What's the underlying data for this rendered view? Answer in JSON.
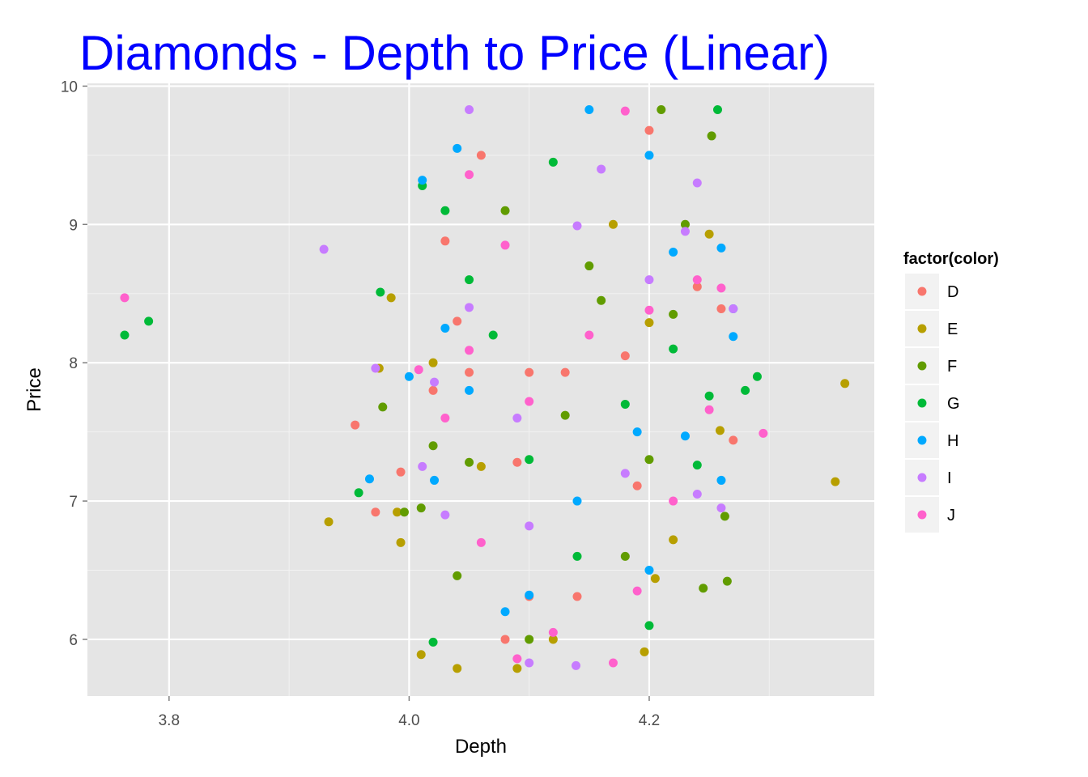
{
  "chart_data": {
    "type": "scatter",
    "title": "Diamonds - Depth to Price (Linear)",
    "title_color": "#0000ff",
    "xlabel": "Depth",
    "ylabel": "Price",
    "xlim": [
      3.732,
      4.3875
    ],
    "ylim": [
      5.59,
      10.02
    ],
    "x_ticks": [
      3.8,
      4.0,
      4.2
    ],
    "x_tick_labels": [
      "3.8",
      "4.0",
      "4.2"
    ],
    "y_ticks": [
      6,
      7,
      8,
      9,
      10
    ],
    "y_tick_labels": [
      "6",
      "7",
      "8",
      "9",
      "10"
    ],
    "grid": true,
    "panel_background": "#e5e5e5",
    "legend": {
      "title": "factor(color)",
      "position": "right",
      "entries": [
        "D",
        "E",
        "F",
        "G",
        "H",
        "I",
        "J"
      ]
    },
    "series": [
      {
        "name": "D",
        "color": "#f8766d",
        "points": [
          [
            3.955,
            7.55
          ],
          [
            3.972,
            6.92
          ],
          [
            3.993,
            7.21
          ],
          [
            4.03,
            8.88
          ],
          [
            4.05,
            7.93
          ],
          [
            4.1,
            7.93
          ],
          [
            4.13,
            7.93
          ],
          [
            4.14,
            6.31
          ],
          [
            4.1,
            6.31
          ],
          [
            4.09,
            7.28
          ],
          [
            4.2,
            9.68
          ],
          [
            4.24,
            8.55
          ],
          [
            4.27,
            7.44
          ],
          [
            4.26,
            8.39
          ],
          [
            4.18,
            8.05
          ],
          [
            4.19,
            7.11
          ],
          [
            4.02,
            7.8
          ],
          [
            4.04,
            8.3
          ],
          [
            4.06,
            9.5
          ],
          [
            4.08,
            6.0
          ]
        ]
      },
      {
        "name": "E",
        "color": "#b79f00",
        "points": [
          [
            3.933,
            6.85
          ],
          [
            3.975,
            7.96
          ],
          [
            3.985,
            8.47
          ],
          [
            3.99,
            6.92
          ],
          [
            3.993,
            6.7
          ],
          [
            4.01,
            5.89
          ],
          [
            4.04,
            5.79
          ],
          [
            4.09,
            5.79
          ],
          [
            4.196,
            5.91
          ],
          [
            4.205,
            6.44
          ],
          [
            4.25,
            8.93
          ],
          [
            4.259,
            7.51
          ],
          [
            4.355,
            7.14
          ],
          [
            4.363,
            7.85
          ],
          [
            4.06,
            7.25
          ],
          [
            4.12,
            6.0
          ],
          [
            4.2,
            8.29
          ],
          [
            4.22,
            6.72
          ],
          [
            4.02,
            8.0
          ],
          [
            4.17,
            9.0
          ]
        ]
      },
      {
        "name": "F",
        "color": "#619c00",
        "points": [
          [
            3.978,
            7.68
          ],
          [
            3.996,
            6.92
          ],
          [
            4.01,
            6.95
          ],
          [
            4.05,
            7.28
          ],
          [
            4.1,
            6.0
          ],
          [
            4.21,
            9.83
          ],
          [
            4.252,
            9.64
          ],
          [
            4.263,
            6.89
          ],
          [
            4.265,
            6.42
          ],
          [
            4.245,
            6.37
          ],
          [
            4.22,
            8.35
          ],
          [
            4.02,
            7.4
          ],
          [
            4.15,
            8.7
          ],
          [
            4.04,
            6.46
          ],
          [
            4.18,
            6.6
          ],
          [
            4.08,
            9.1
          ],
          [
            4.2,
            7.3
          ],
          [
            4.13,
            7.62
          ],
          [
            4.23,
            9.0
          ],
          [
            4.16,
            8.45
          ]
        ]
      },
      {
        "name": "G",
        "color": "#00ba38",
        "points": [
          [
            3.763,
            8.2
          ],
          [
            3.783,
            8.3
          ],
          [
            3.958,
            7.06
          ],
          [
            3.976,
            8.51
          ],
          [
            4.011,
            9.28
          ],
          [
            4.05,
            8.6
          ],
          [
            4.1,
            7.3
          ],
          [
            4.257,
            9.83
          ],
          [
            4.28,
            7.8
          ],
          [
            4.29,
            7.9
          ],
          [
            4.25,
            7.76
          ],
          [
            4.24,
            7.26
          ],
          [
            4.02,
            5.98
          ],
          [
            4.03,
            9.1
          ],
          [
            4.2,
            6.1
          ],
          [
            4.14,
            6.6
          ],
          [
            4.07,
            8.2
          ],
          [
            4.22,
            8.1
          ],
          [
            4.18,
            7.7
          ],
          [
            4.12,
            9.45
          ]
        ]
      },
      {
        "name": "H",
        "color": "#00a9ff",
        "points": [
          [
            3.967,
            7.16
          ],
          [
            4.0,
            7.9
          ],
          [
            4.011,
            9.32
          ],
          [
            4.021,
            7.15
          ],
          [
            4.1,
            6.32
          ],
          [
            4.2,
            9.5
          ],
          [
            4.23,
            7.47
          ],
          [
            4.27,
            8.39
          ],
          [
            4.27,
            8.19
          ],
          [
            4.26,
            8.83
          ],
          [
            4.26,
            7.15
          ],
          [
            4.04,
            9.55
          ],
          [
            4.15,
            9.83
          ],
          [
            4.08,
            6.2
          ],
          [
            4.19,
            7.5
          ],
          [
            4.22,
            8.8
          ],
          [
            4.05,
            7.8
          ],
          [
            4.14,
            7.0
          ],
          [
            4.03,
            8.25
          ],
          [
            4.2,
            6.5
          ]
        ]
      },
      {
        "name": "I",
        "color": "#c77cff",
        "points": [
          [
            3.929,
            8.82
          ],
          [
            3.972,
            7.96
          ],
          [
            4.011,
            7.25
          ],
          [
            4.021,
            7.86
          ],
          [
            4.05,
            9.83
          ],
          [
            4.1,
            5.83
          ],
          [
            4.139,
            5.81
          ],
          [
            4.24,
            9.3
          ],
          [
            4.27,
            8.39
          ],
          [
            4.26,
            6.95
          ],
          [
            4.24,
            7.05
          ],
          [
            4.23,
            8.95
          ],
          [
            4.05,
            8.4
          ],
          [
            4.1,
            6.82
          ],
          [
            4.16,
            9.4
          ],
          [
            4.03,
            6.9
          ],
          [
            4.2,
            8.6
          ],
          [
            4.09,
            7.6
          ],
          [
            4.14,
            8.99
          ],
          [
            4.18,
            7.2
          ]
        ]
      },
      {
        "name": "J",
        "color": "#ff61cc",
        "points": [
          [
            3.763,
            8.47
          ],
          [
            4.008,
            7.95
          ],
          [
            4.05,
            8.09
          ],
          [
            4.09,
            5.86
          ],
          [
            4.17,
            5.83
          ],
          [
            4.26,
            8.54
          ],
          [
            4.295,
            7.49
          ],
          [
            4.25,
            7.66
          ],
          [
            4.24,
            8.6
          ],
          [
            4.18,
            9.82
          ],
          [
            4.05,
            9.36
          ],
          [
            4.12,
            6.05
          ],
          [
            4.03,
            7.6
          ],
          [
            4.2,
            8.38
          ],
          [
            4.1,
            7.72
          ],
          [
            4.06,
            6.7
          ],
          [
            4.15,
            8.2
          ],
          [
            4.22,
            7.0
          ],
          [
            4.19,
            6.35
          ],
          [
            4.08,
            8.85
          ]
        ]
      }
    ]
  }
}
